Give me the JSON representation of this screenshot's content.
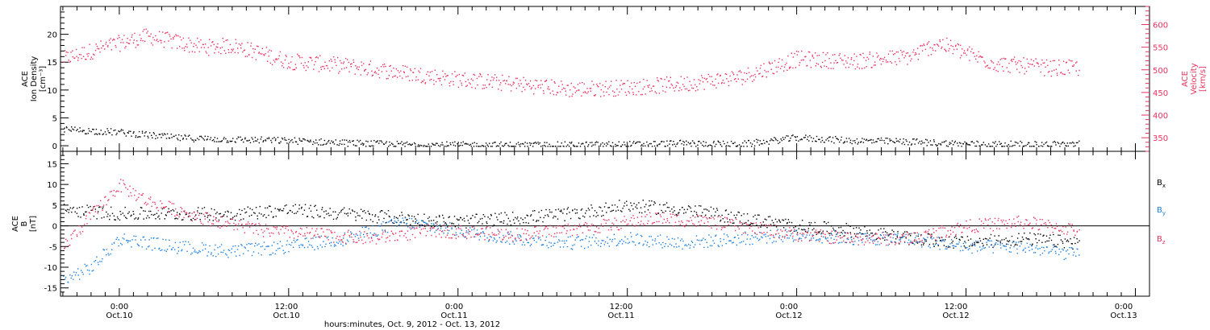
{
  "colors": {
    "pink": "#e8325f",
    "blue": "#1a7fe0",
    "black": "#000000"
  },
  "x_axis": {
    "ticks": [
      {
        "time": "0:00",
        "date": "Oct.10"
      },
      {
        "time": "12:00",
        "date": "Oct.10"
      },
      {
        "time": "0:00",
        "date": "Oct.11"
      },
      {
        "time": "12:00",
        "date": "Oct.11"
      },
      {
        "time": "0:00",
        "date": "Oct.12"
      },
      {
        "time": "12:00",
        "date": "Oct.12"
      },
      {
        "time": "0:00",
        "date": "Oct.13"
      }
    ],
    "title": "hours:minutes, Oct. 9, 2012 - Oct. 13, 2012"
  },
  "chart_data": [
    {
      "type": "scatter",
      "title": "",
      "xlabel": "hours:minutes, Oct. 9, 2012 - Oct. 13, 2012",
      "xlim": [
        "2012-10-09 19:50",
        "2012-10-13 01:00"
      ],
      "grid": false,
      "y_left": {
        "label": [
          "ACE",
          "Ion Density",
          "[cm⁻³]"
        ],
        "lim": [
          -1,
          25
        ],
        "ticks": [
          0,
          5,
          10,
          15,
          20
        ]
      },
      "y_right": {
        "label": [
          "ACE",
          "Velocity",
          "[km/s]"
        ],
        "lim": [
          320,
          640
        ],
        "ticks": [
          350,
          400,
          450,
          500,
          550,
          600
        ]
      },
      "series": [
        {
          "axis": "left",
          "color": "black",
          "x": [
            "2012-10-09 20:00",
            "2012-10-10 00:00",
            "2012-10-10 04:00",
            "2012-10-10 08:00",
            "2012-10-10 12:00",
            "2012-10-10 16:00",
            "2012-10-10 20:00",
            "2012-10-11 00:00",
            "2012-10-11 04:00",
            "2012-10-11 08:00",
            "2012-10-11 12:00",
            "2012-10-11 16:00",
            "2012-10-11 20:00",
            "2012-10-12 00:00",
            "2012-10-12 04:00",
            "2012-10-12 08:00",
            "2012-10-12 12:00",
            "2012-10-12 16:00",
            "2012-10-12 20:00"
          ],
          "y": [
            3.0,
            2.5,
            1.5,
            1.2,
            1.0,
            0.6,
            0.3,
            0.2,
            0.2,
            0.2,
            0.3,
            0.5,
            0.3,
            1.5,
            1.0,
            0.8,
            0.4,
            0.3,
            0.4
          ]
        },
        {
          "axis": "right",
          "color": "pink",
          "x": [
            "2012-10-09 20:00",
            "2012-10-10 00:00",
            "2012-10-10 02:00",
            "2012-10-10 06:00",
            "2012-10-10 08:00",
            "2012-10-10 12:00",
            "2012-10-10 16:00",
            "2012-10-10 20:00",
            "2012-10-11 00:00",
            "2012-10-11 04:00",
            "2012-10-11 08:00",
            "2012-10-11 12:00",
            "2012-10-11 16:00",
            "2012-10-11 20:00",
            "2012-10-12 00:00",
            "2012-10-12 04:00",
            "2012-10-12 08:00",
            "2012-10-12 10:00",
            "2012-10-12 14:00",
            "2012-10-12 18:00",
            "2012-10-12 20:00"
          ],
          "y": [
            525,
            560,
            575,
            550,
            555,
            520,
            510,
            495,
            480,
            470,
            458,
            462,
            470,
            485,
            525,
            520,
            530,
            560,
            515,
            505,
            505
          ]
        }
      ]
    },
    {
      "type": "scatter",
      "title": "",
      "xlabel": "hours:minutes, Oct. 9, 2012 - Oct. 13, 2012",
      "xlim": [
        "2012-10-09 19:50",
        "2012-10-13 01:00"
      ],
      "grid": false,
      "y_left": {
        "label": [
          "ACE",
          "B",
          "[nT]"
        ],
        "lim": [
          -17,
          18
        ],
        "ticks": [
          -15,
          -10,
          -5,
          0,
          5,
          10,
          15
        ]
      },
      "legend": {
        "placement": "right",
        "entries": [
          {
            "base": "B",
            "sub": "x",
            "color": "black"
          },
          {
            "base": "B",
            "sub": "y",
            "color": "blue"
          },
          {
            "base": "B",
            "sub": "z",
            "color": "pink"
          }
        ]
      },
      "series": [
        {
          "name": "Bx",
          "color": "black",
          "x": [
            "2012-10-09 20:00",
            "2012-10-10 00:00",
            "2012-10-10 04:00",
            "2012-10-10 08:00",
            "2012-10-10 12:00",
            "2012-10-10 16:00",
            "2012-10-10 20:00",
            "2012-10-11 00:00",
            "2012-10-11 04:00",
            "2012-10-11 08:00",
            "2012-10-11 12:00",
            "2012-10-11 16:00",
            "2012-10-11 20:00",
            "2012-10-12 00:00",
            "2012-10-12 04:00",
            "2012-10-12 08:00",
            "2012-10-12 12:00",
            "2012-10-12 16:00",
            "2012-10-12 20:00"
          ],
          "y": [
            4,
            3,
            3,
            3,
            4,
            3,
            2,
            1,
            2,
            3,
            5,
            4,
            2,
            0,
            -1,
            -3,
            -4,
            -3,
            -4
          ]
        },
        {
          "name": "By",
          "color": "blue",
          "x": [
            "2012-10-09 20:00",
            "2012-10-09 22:00",
            "2012-10-10 00:00",
            "2012-10-10 04:00",
            "2012-10-10 08:00",
            "2012-10-10 12:00",
            "2012-10-10 16:00",
            "2012-10-10 20:00",
            "2012-10-11 00:00",
            "2012-10-11 04:00",
            "2012-10-11 08:00",
            "2012-10-11 12:00",
            "2012-10-11 16:00",
            "2012-10-11 20:00",
            "2012-10-12 00:00",
            "2012-10-12 04:00",
            "2012-10-12 08:00",
            "2012-10-12 12:00",
            "2012-10-12 16:00",
            "2012-10-12 20:00"
          ],
          "y": [
            -13,
            -10,
            -3,
            -5,
            -6,
            -5,
            -3,
            1,
            -1,
            -3,
            -4,
            -3,
            -4,
            -3,
            -2,
            -3,
            -3,
            -5,
            -5,
            -7
          ]
        },
        {
          "name": "Bz",
          "color": "pink",
          "x": [
            "2012-10-09 20:00",
            "2012-10-10 00:00",
            "2012-10-10 02:00",
            "2012-10-10 06:00",
            "2012-10-10 10:00",
            "2012-10-10 14:00",
            "2012-10-10 18:00",
            "2012-10-10 22:00",
            "2012-10-11 04:00",
            "2012-10-11 10:00",
            "2012-10-11 14:00",
            "2012-10-11 18:00",
            "2012-10-12 00:00",
            "2012-10-12 04:00",
            "2012-10-12 08:00",
            "2012-10-12 12:00",
            "2012-10-12 16:00",
            "2012-10-12 20:00"
          ],
          "y": [
            -5,
            10,
            6,
            2,
            -1,
            -2,
            -3,
            -1,
            -2,
            0,
            2,
            1,
            -2,
            -3,
            -3,
            0,
            1,
            -1
          ]
        }
      ]
    }
  ]
}
